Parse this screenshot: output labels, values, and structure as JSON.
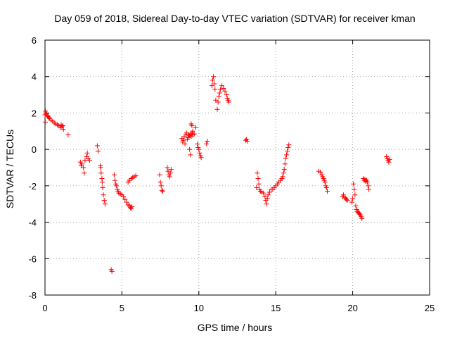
{
  "chart_data": {
    "type": "scatter",
    "title": "Day 059 of 2018, Sidereal Day-to-day VTEC variation (SDTVAR) for receiver kman",
    "xlabel": "GPS time / hours",
    "ylabel": "SDTVAR / TECUs",
    "xlim": [
      0,
      25
    ],
    "ylim": [
      -8,
      6
    ],
    "xticks": [
      0,
      5,
      10,
      15,
      20,
      25
    ],
    "yticks": [
      -8,
      -6,
      -4,
      -2,
      0,
      2,
      4,
      6
    ],
    "xtick_labels": [
      "0",
      "5",
      "10",
      "15",
      "20",
      "25"
    ],
    "ytick_labels": [
      "-8",
      "-6",
      "-4",
      "-2",
      "0",
      "2",
      "4",
      "6"
    ],
    "grid": true,
    "marker": "+",
    "color": "#ff0000",
    "series": [
      {
        "name": "SDTVAR",
        "x": [
          0.0,
          0.05,
          0.1,
          0.15,
          0.2,
          0.25,
          0.3,
          0.4,
          0.5,
          0.6,
          0.7,
          0.8,
          0.9,
          1.0,
          1.05,
          1.1,
          1.15,
          1.2,
          0.02,
          0.03,
          1.5,
          2.3,
          2.35,
          2.4,
          2.5,
          2.55,
          2.6,
          2.7,
          2.75,
          2.8,
          2.9,
          3.4,
          3.45,
          3.6,
          3.62,
          3.65,
          3.7,
          3.72,
          3.75,
          3.8,
          3.85,
          3.9,
          4.3,
          4.35,
          4.5,
          4.55,
          4.6,
          4.65,
          4.7,
          4.75,
          4.8,
          4.9,
          5.0,
          5.1,
          5.2,
          5.3,
          5.4,
          5.5,
          5.55,
          5.6,
          5.65,
          5.4,
          5.5,
          5.6,
          5.7,
          5.8,
          5.9,
          7.45,
          7.5,
          7.55,
          7.6,
          7.65,
          7.95,
          8.0,
          8.05,
          8.1,
          8.15,
          8.2,
          8.9,
          8.95,
          9.0,
          9.05,
          9.1,
          9.15,
          9.2,
          9.25,
          9.3,
          9.35,
          9.4,
          9.45,
          9.5,
          9.55,
          9.6,
          9.7,
          9.8,
          9.9,
          9.95,
          10.0,
          10.05,
          10.1,
          10.15,
          9.4,
          9.45,
          9.5,
          9.55,
          9.6,
          10.5,
          10.55,
          10.85,
          10.9,
          10.95,
          11.0,
          11.05,
          11.1,
          11.2,
          11.25,
          11.3,
          11.35,
          11.4,
          11.5,
          11.6,
          11.7,
          11.8,
          11.85,
          11.9,
          11.95,
          13.05,
          13.1,
          13.15,
          13.75,
          13.8,
          13.85,
          13.9,
          13.95,
          14.0,
          14.1,
          14.2,
          14.3,
          14.35,
          14.4,
          14.45,
          14.5,
          14.6,
          14.7,
          14.8,
          14.9,
          15.0,
          15.1,
          15.2,
          15.3,
          15.4,
          15.45,
          15.5,
          15.55,
          15.6,
          15.65,
          15.7,
          15.75,
          15.8,
          15.85,
          17.8,
          17.9,
          18.0,
          18.05,
          18.1,
          18.15,
          18.2,
          18.25,
          18.3,
          18.35,
          19.35,
          19.4,
          19.5,
          19.55,
          19.6,
          19.65,
          19.95,
          20.0,
          20.05,
          20.1,
          20.15,
          20.2,
          20.25,
          20.3,
          20.35,
          20.4,
          20.45,
          20.5,
          20.55,
          20.6,
          20.7,
          20.75,
          20.8,
          20.85,
          20.9,
          20.95,
          21.0,
          21.05,
          22.2,
          22.25,
          22.3,
          22.35,
          22.4
        ],
        "y": [
          1.9,
          2.0,
          1.95,
          1.85,
          1.8,
          1.75,
          1.7,
          1.6,
          1.55,
          1.45,
          1.4,
          1.35,
          1.3,
          1.2,
          1.35,
          1.25,
          1.3,
          1.1,
          1.5,
          2.1,
          0.8,
          -0.7,
          -0.9,
          -0.8,
          -1.0,
          -1.3,
          -0.6,
          -0.4,
          -0.2,
          -0.5,
          -0.6,
          0.2,
          -0.1,
          -0.9,
          -1.0,
          -1.3,
          -1.6,
          -1.8,
          -2.1,
          -2.5,
          -2.8,
          -3.0,
          -6.6,
          -6.7,
          -1.4,
          -1.7,
          -1.9,
          -2.0,
          -2.2,
          -2.3,
          -2.4,
          -2.45,
          -2.5,
          -2.6,
          -2.75,
          -2.9,
          -3.05,
          -3.1,
          -3.2,
          -3.25,
          -3.15,
          -1.8,
          -1.7,
          -1.6,
          -1.55,
          -1.5,
          -1.45,
          -1.4,
          -1.8,
          -2.0,
          -2.25,
          -2.3,
          -1.0,
          -1.2,
          -1.4,
          -1.5,
          -1.3,
          -1.1,
          0.6,
          0.4,
          0.5,
          0.7,
          0.3,
          0.8,
          0.9,
          0.55,
          0.65,
          0.8,
          0.75,
          0.85,
          0.7,
          0.9,
          0.8,
          0.85,
          1.2,
          0.3,
          0.1,
          0.0,
          -0.2,
          -0.35,
          -0.45,
          0.0,
          -0.3,
          1.4,
          1.3,
          1.0,
          0.3,
          0.45,
          3.5,
          3.8,
          4.0,
          3.6,
          3.3,
          2.7,
          2.2,
          2.6,
          2.9,
          3.1,
          3.3,
          3.5,
          3.35,
          3.2,
          3.0,
          2.8,
          2.7,
          2.6,
          0.5,
          0.55,
          0.45,
          -2.1,
          -1.3,
          -1.6,
          -1.9,
          -2.2,
          -2.3,
          -2.35,
          -2.4,
          -2.6,
          -2.8,
          -3.0,
          -2.7,
          -2.5,
          -2.35,
          -2.2,
          -2.2,
          -2.1,
          -2.0,
          -1.9,
          -1.8,
          -1.7,
          -1.6,
          -1.5,
          -1.3,
          -1.1,
          -0.8,
          -0.5,
          -0.3,
          -0.1,
          0.1,
          0.25,
          -1.2,
          -1.25,
          -1.4,
          -1.5,
          -1.6,
          -1.7,
          -1.8,
          -2.0,
          -2.1,
          -2.3,
          -2.6,
          -2.5,
          -2.65,
          -2.7,
          -2.75,
          -2.8,
          -2.9,
          -2.7,
          -1.9,
          -2.2,
          -2.5,
          -3.1,
          -3.3,
          -3.4,
          -3.45,
          -3.5,
          -3.55,
          -3.6,
          -3.7,
          -3.8,
          -1.6,
          -1.7,
          -1.65,
          -1.75,
          -1.7,
          -1.8,
          -2.0,
          -2.2,
          -0.4,
          -0.5,
          -0.6,
          -0.7,
          -0.55
        ]
      }
    ]
  }
}
